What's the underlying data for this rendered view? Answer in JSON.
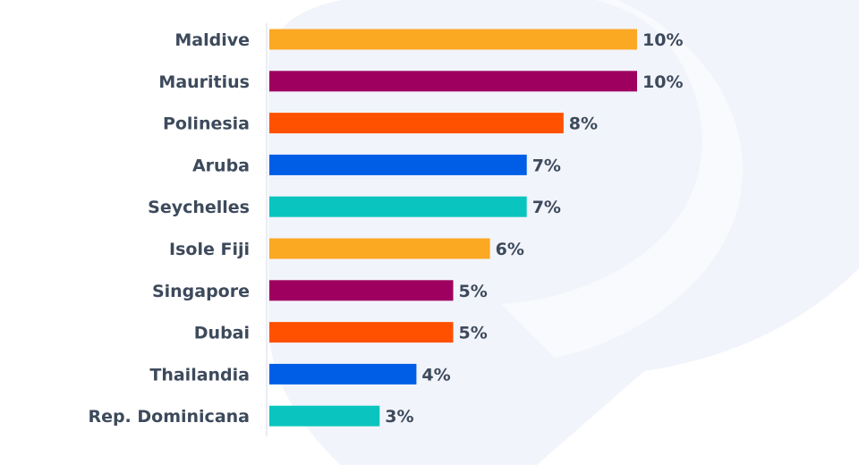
{
  "chart_data": {
    "type": "bar",
    "orientation": "horizontal",
    "title": "",
    "xlabel": "",
    "ylabel": "",
    "categories": [
      "Maldive",
      "Mauritius",
      "Polinesia",
      "Aruba",
      "Seychelles",
      "Isole Fiji",
      "Singapore",
      "Dubai",
      "Thailandia",
      "Rep. Dominicana"
    ],
    "values": [
      10,
      10,
      8,
      7,
      7,
      6,
      5,
      5,
      4,
      3
    ],
    "value_labels": [
      "10%",
      "10%",
      "8%",
      "7%",
      "7%",
      "6%",
      "5%",
      "5%",
      "4%",
      "3%"
    ],
    "colors": [
      "#fba823",
      "#9e0060",
      "#ff5100",
      "#005ee6",
      "#0ac5bf",
      "#fba823",
      "#9e0060",
      "#ff5100",
      "#005ee6",
      "#0ac5bf"
    ],
    "xlim": [
      0,
      10
    ],
    "grid": false,
    "legend": "none"
  },
  "theme": {
    "text_color": "#3d4a5c",
    "axis_color": "#e3e7ee",
    "background_shape_color": "#f1f3fa"
  }
}
